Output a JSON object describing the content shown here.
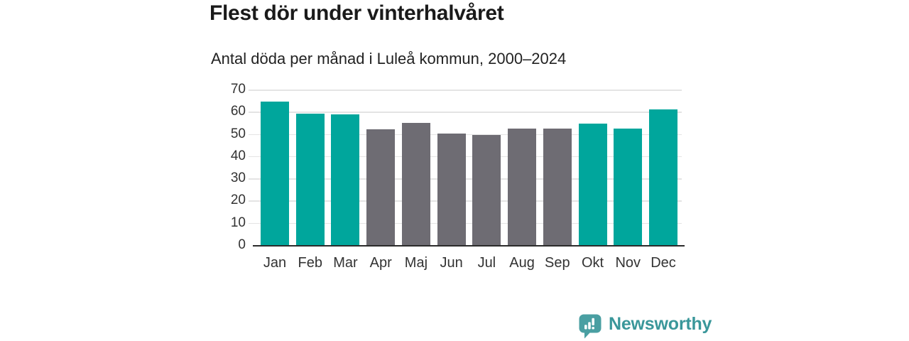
{
  "header": {
    "title": "Flest dör under vinterhalvåret",
    "subtitle": "Antal döda per månad i Luleå kommun, 2000–2024"
  },
  "chart_data": {
    "type": "bar",
    "title": "Flest dör under vinterhalvåret",
    "subtitle": "Antal döda per månad i Luleå kommun, 2000–2024",
    "categories": [
      "Jan",
      "Feb",
      "Mar",
      "Apr",
      "Maj",
      "Jun",
      "Jul",
      "Aug",
      "Sep",
      "Okt",
      "Nov",
      "Dec"
    ],
    "values": [
      64.6,
      59.0,
      58.7,
      52.2,
      55.1,
      50.2,
      49.7,
      52.3,
      52.5,
      54.8,
      52.5,
      61.0
    ],
    "highlighted": [
      true,
      true,
      true,
      false,
      false,
      false,
      false,
      false,
      false,
      true,
      true,
      true
    ],
    "xlabel": "",
    "ylabel": "",
    "ylim": [
      0,
      70
    ],
    "yticks": [
      0,
      10,
      20,
      30,
      40,
      50,
      60,
      70
    ],
    "grid": true,
    "legend": false
  },
  "style": {
    "highlight_color": "#00A69C",
    "muted_color": "#6E6C73",
    "grid_color": "#e4e4e4",
    "axis_color": "#2b2b2b",
    "title_color": "#1a1a1a",
    "tick_label_color": "#333333",
    "logo_bubble_color": "#4A9FA2",
    "logo_text_color": "#3A979A"
  },
  "footer": {
    "brand": "Newsworthy"
  }
}
